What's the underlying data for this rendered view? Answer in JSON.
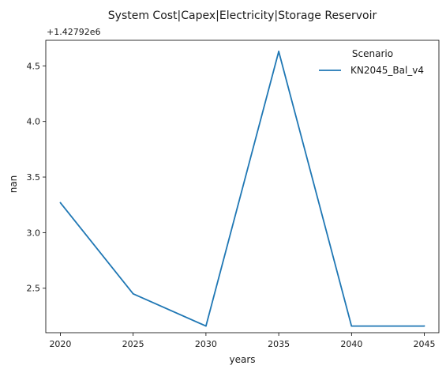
{
  "chart_data": {
    "type": "line",
    "title": "System Cost|Capex|Electricity|Storage Reservoir",
    "xlabel": "years",
    "ylabel": "nan",
    "offset_label": "+1.42792e6",
    "x": [
      2020,
      2025,
      2030,
      2035,
      2040,
      2045
    ],
    "xticks": [
      "2020",
      "2025",
      "2030",
      "2035",
      "2040",
      "2045"
    ],
    "yticks": [
      "2.5",
      "3.0",
      "3.5",
      "4.0",
      "4.5"
    ],
    "ytick_values": [
      2.5,
      3.0,
      3.5,
      4.0,
      4.5
    ],
    "xlim": [
      2019,
      2046
    ],
    "ylim": [
      2.1,
      4.73
    ],
    "legend": {
      "title": "Scenario",
      "placement": "top-right"
    },
    "series": [
      {
        "name": "KN2045_Bal_v4",
        "color": "#1f77b4",
        "values": [
          3.27,
          2.45,
          2.16,
          4.63,
          2.16,
          2.16
        ]
      }
    ]
  }
}
